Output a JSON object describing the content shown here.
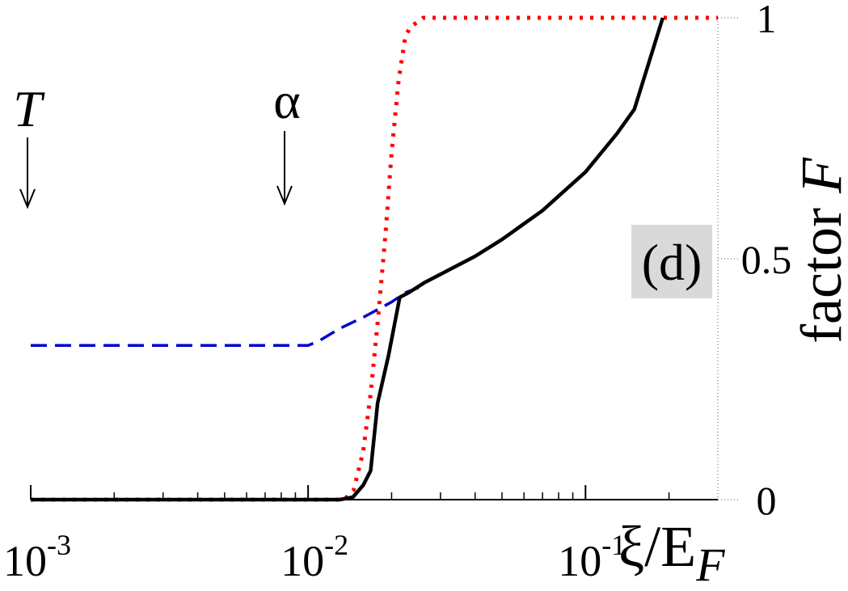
{
  "chart_data": {
    "type": "line",
    "x_scale": "log",
    "xlim": [
      0.001,
      0.3
    ],
    "ylim": [
      0,
      1
    ],
    "x_ticks": [
      {
        "value": 0.001,
        "mantissa": "10",
        "exponent": "-3"
      },
      {
        "value": 0.01,
        "mantissa": "10",
        "exponent": "-2"
      },
      {
        "value": 0.1,
        "mantissa": "10",
        "exponent": "-1"
      }
    ],
    "y_ticks": [
      {
        "value": 0,
        "label": "0"
      },
      {
        "value": 0.5,
        "label": "0.5"
      },
      {
        "value": 1,
        "label": "1"
      }
    ],
    "xlabel": {
      "main": "ξ/E",
      "sub": "F"
    },
    "ylabel": {
      "main": "factor ",
      "italic": "F"
    },
    "panel_label": "(d)",
    "annotations": [
      {
        "text": "T",
        "x": 0.001
      },
      {
        "text": "α",
        "x": 0.01
      }
    ],
    "series": [
      {
        "style": "dotted",
        "color": "#ff0000",
        "x": [
          0.001,
          0.0135,
          0.0146,
          0.0158,
          0.0168,
          0.0179,
          0.019,
          0.02,
          0.0212,
          0.0224,
          0.0233,
          0.026,
          0.05,
          0.1,
          0.2,
          0.3
        ],
        "y": [
          0,
          0,
          0.02,
          0.1,
          0.22,
          0.38,
          0.55,
          0.72,
          0.87,
          0.96,
          0.98,
          1.0,
          1.0,
          1.0,
          1.0,
          1.0
        ]
      },
      {
        "style": "dashed",
        "color": "#0000cc",
        "x": [
          0.001,
          0.01,
          0.011,
          0.013,
          0.016,
          0.02,
          0.0225,
          0.025
        ],
        "y": [
          0.32,
          0.32,
          0.33,
          0.355,
          0.38,
          0.41,
          0.43,
          0.44
        ]
      },
      {
        "style": "solid",
        "color": "#000000",
        "x": [
          0.001,
          0.013,
          0.0145,
          0.0158,
          0.0168,
          0.0178,
          0.0195,
          0.0214,
          0.0231,
          0.0262,
          0.033,
          0.04,
          0.05,
          0.07,
          0.1,
          0.13,
          0.15,
          0.19
        ],
        "y": [
          0,
          0,
          0.005,
          0.03,
          0.06,
          0.2,
          0.3,
          0.42,
          0.43,
          0.45,
          0.48,
          0.505,
          0.54,
          0.6,
          0.68,
          0.76,
          0.81,
          1.0
        ]
      }
    ]
  }
}
